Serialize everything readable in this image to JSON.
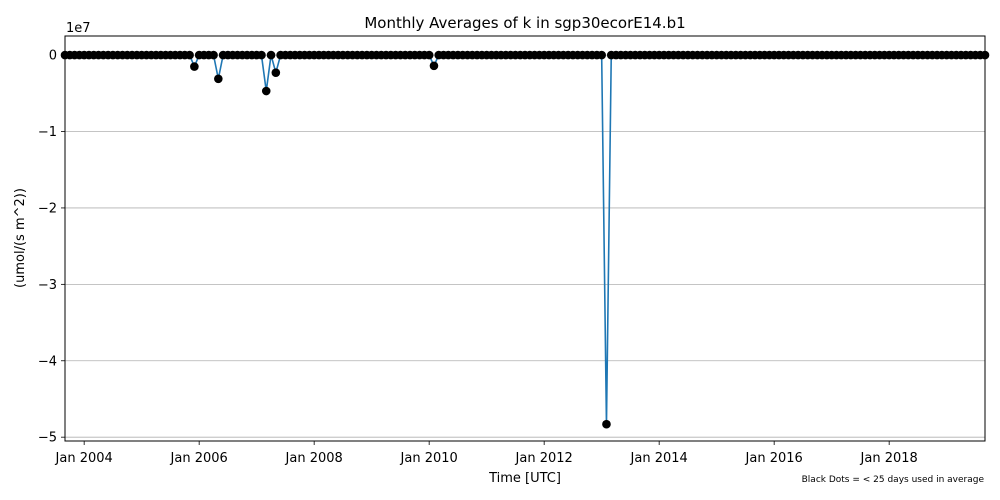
{
  "chart_data": {
    "type": "line",
    "title": "Monthly Averages of k in sgp30ecorE14.b1",
    "xlabel": "Time [UTC]",
    "ylabel": "(umol/(s m^2))",
    "y_multiplier_label": "1e7",
    "x_range": [
      "2003-09",
      "2019-09"
    ],
    "ylim": [
      -5.05,
      0.25
    ],
    "y_ticks": [
      0,
      -1,
      -2,
      -3,
      -4,
      -5
    ],
    "y_tick_labels": [
      "0",
      "−1",
      "−2",
      "−3",
      "−4",
      "−5"
    ],
    "x_ticks": [
      "2004-01",
      "2006-01",
      "2008-01",
      "2010-01",
      "2012-01",
      "2014-01",
      "2016-01",
      "2018-01"
    ],
    "x_tick_labels": [
      "Jan 2004",
      "Jan 2006",
      "Jan 2008",
      "Jan 2010",
      "Jan 2012",
      "Jan 2014",
      "Jan 2016",
      "Jan 2018"
    ],
    "grid": "horizontal",
    "line_color": "#1f77b4",
    "dot_color": "#000000",
    "series": [
      {
        "start": "2003-09",
        "end": "2019-09",
        "default_value": 0,
        "exceptions": [
          {
            "x": "2005-12",
            "y": -0.15
          },
          {
            "x": "2006-05",
            "y": -0.31
          },
          {
            "x": "2007-03",
            "y": -0.47
          },
          {
            "x": "2007-05",
            "y": -0.23
          },
          {
            "x": "2010-02",
            "y": -0.14
          },
          {
            "x": "2013-02",
            "y": -4.83
          }
        ]
      }
    ],
    "note": "Black Dots = < 25 days used in average"
  }
}
